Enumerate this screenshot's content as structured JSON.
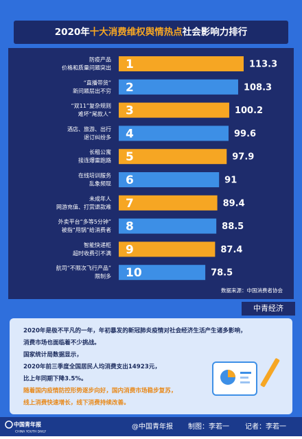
{
  "chart_data": {
    "type": "bar",
    "title_parts": [
      "2020年",
      "十大消费维权舆情热点",
      "社会影响力排行"
    ],
    "categories": [
      [
        "防疫产品",
        "价格和质量问题突出"
      ],
      [
        "“直播带货”",
        "新问题层出不穷"
      ],
      [
        "“双11”复杂规则",
        "难坏“尾款人”"
      ],
      [
        "酒店、旅游、出行",
        "退订纠纷多"
      ],
      [
        "长租公寓",
        "接连爆雷跑路"
      ],
      [
        "在线培训服务",
        "乱象频现"
      ],
      [
        "未成年人",
        "网游充值、打赏退款难"
      ],
      [
        "外卖平台“多等5分钟”",
        "被指“甩锅”给消费者"
      ],
      [
        "智能快递柜",
        "超时收费引不满"
      ],
      [
        "航司“不限次飞行产品”",
        "限制多"
      ]
    ],
    "ranks": [
      1,
      2,
      3,
      4,
      5,
      6,
      7,
      8,
      9,
      10
    ],
    "values": [
      113.3,
      108.3,
      100.2,
      99.6,
      97.9,
      91,
      89.4,
      88.5,
      87.4,
      78.5
    ],
    "value_labels": [
      "113.3",
      "108.3",
      "100.2",
      "99.6",
      "97.9",
      "91",
      "89.4",
      "88.5",
      "87.4",
      "78.5"
    ],
    "colors": [
      "#f6a623",
      "#3d8fe6",
      "#f6a623",
      "#3d8fe6",
      "#f6a623",
      "#3d8fe6",
      "#f6a623",
      "#3d8fe6",
      "#f6a623",
      "#3d8fe6"
    ],
    "source": "数据来源：中国消费者协会"
  },
  "badge": "中青经济",
  "text_lines": [
    {
      "text": "2020年是极不平凡的一年，年初暴发的新冠肺炎疫情对社会经济生活产生诸多影响，",
      "color": "#1a2a5c"
    },
    {
      "text": "消费市场也面临着不少挑战。",
      "color": "#1a2a5c"
    },
    {
      "text": "国家统计局数据显示，",
      "color": "#1a2a5c"
    },
    {
      "text": "2020年前三季度全国居民人均消费支出14923元，",
      "color": "#1a2a5c"
    },
    {
      "text": "比上年同期下降3.5%。",
      "color": "#1a2a5c"
    },
    {
      "text": "随着国内疫情防控形势逐步向好，国内消费市场稳步复苏，",
      "color": "#e8891a"
    },
    {
      "text": "线上消费快速增长，线下消费持续改善。",
      "color": "#e8891a"
    }
  ],
  "footer": {
    "logo": "中国青年报",
    "logo_en": "CHINA YOUTH DAILY",
    "weibo": "@中国青年报",
    "maker": "制图：李若一",
    "reporter": "记者：李若一"
  }
}
